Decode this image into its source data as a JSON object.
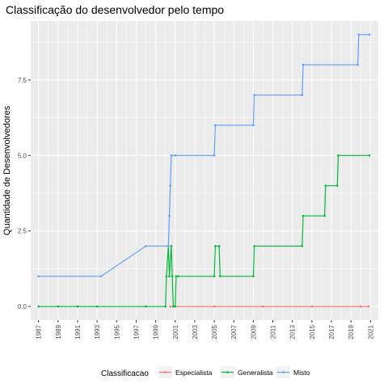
{
  "chart_data": {
    "type": "line",
    "title": "Classificação do desenvolvedor pelo tempo",
    "xlabel": "",
    "ylabel": "Quantidade de Desenvolvedores",
    "xlim": [
      1986.2,
      2021.8
    ],
    "ylim": [
      -0.45,
      9.45
    ],
    "x_ticks": [
      1987,
      1989,
      1991,
      1993,
      1995,
      1997,
      1999,
      2001,
      2003,
      2005,
      2007,
      2009,
      2011,
      2013,
      2015,
      2017,
      2019,
      2021
    ],
    "x_tick_labels": [
      "1987",
      "1989",
      "1991",
      "1993",
      "1995",
      "1997",
      "1999",
      "2001",
      "2003",
      "2005",
      "2007",
      "2009",
      "2011",
      "2013",
      "2015",
      "2017",
      "2019",
      "2021"
    ],
    "y_ticks": [
      0,
      2.5,
      5,
      7.5
    ],
    "y_tick_labels": [
      "0.0",
      "2.5",
      "5.0",
      "7.5"
    ],
    "grid": true,
    "legend": {
      "title": "Classificacao",
      "position": "bottom",
      "entries": [
        "Especialista",
        "Generalista",
        "Misto"
      ]
    },
    "series": [
      {
        "name": "Especialista",
        "color": "#F8766D",
        "x": [
          2000.5,
          2001.0,
          2005.0,
          2010.0,
          2015.0,
          2020.0,
          2020.8
        ],
        "y": [
          0,
          0,
          0,
          0,
          0,
          0,
          0
        ]
      },
      {
        "name": "Generalista",
        "color": "#00BA38",
        "x": [
          1987.0,
          1989.0,
          1991.0,
          1993.0,
          1998.0,
          2000.0,
          2000.1,
          2000.3,
          2000.4,
          2000.6,
          2000.7,
          2000.8,
          2001.0,
          2001.1,
          2001.3,
          2005.0,
          2005.1,
          2005.5,
          2005.6,
          2009.0,
          2009.1,
          2014.0,
          2014.1,
          2016.3,
          2016.4,
          2017.6,
          2017.7,
          2020.9
        ],
        "y": [
          0,
          0,
          0,
          0,
          0,
          0,
          1,
          2,
          1,
          2,
          1,
          0,
          0,
          1,
          1,
          1,
          2,
          2,
          1,
          1,
          2,
          2,
          3,
          3,
          4,
          4,
          5,
          5
        ]
      },
      {
        "name": "Misto",
        "color": "#619CFF",
        "x": [
          1987.0,
          1993.4,
          1998.0,
          2000.3,
          2000.4,
          2000.5,
          2000.6,
          2001.0,
          2005.0,
          2005.1,
          2009.0,
          2009.1,
          2014.0,
          2014.1,
          2019.7,
          2019.8,
          2020.9
        ],
        "y": [
          1,
          1,
          2,
          2,
          3,
          4,
          5,
          5,
          5,
          6,
          6,
          7,
          7,
          8,
          8,
          9,
          9
        ]
      }
    ]
  }
}
